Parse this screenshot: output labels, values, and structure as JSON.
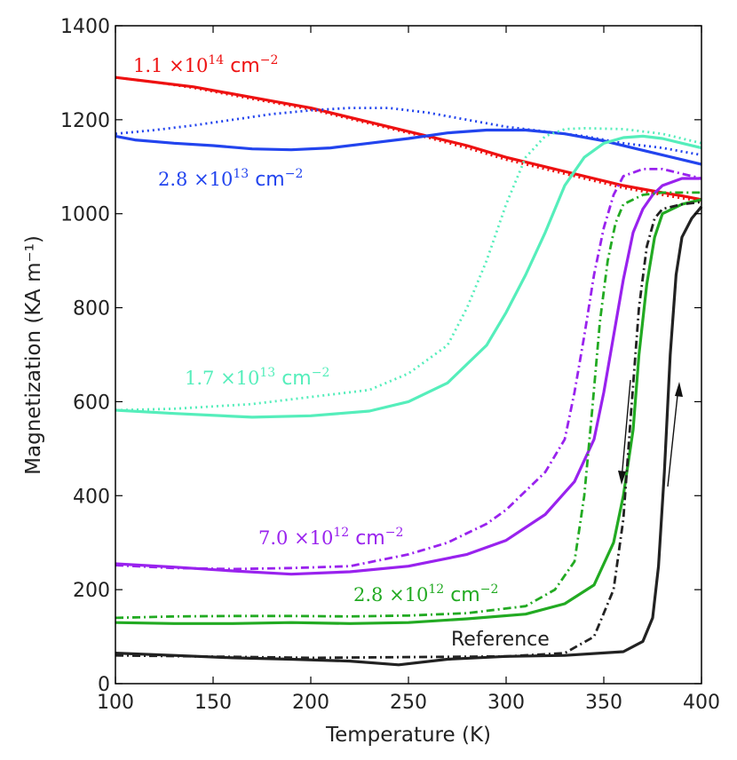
{
  "chart_data": {
    "type": "line",
    "xlabel": "Temperature (K)",
    "ylabel": "Magnetization (KA m⁻¹)",
    "xlim": [
      100,
      400
    ],
    "ylim": [
      0,
      1400
    ],
    "xticks": [
      "100",
      "150",
      "200",
      "250",
      "300",
      "350",
      "400"
    ],
    "yticks": [
      "0",
      "200",
      "400",
      "600",
      "800",
      "1000",
      "1200",
      "1400"
    ],
    "grid": false,
    "legend": "none",
    "series": [
      {
        "color": "#ee1111",
        "style": "solid",
        "x": [
          100,
          120,
          140,
          160,
          180,
          200,
          220,
          240,
          260,
          280,
          300,
          320,
          340,
          360,
          380,
          390,
          400
        ],
        "y": [
          1290,
          1280,
          1270,
          1255,
          1240,
          1225,
          1205,
          1185,
          1165,
          1145,
          1120,
          1100,
          1080,
          1060,
          1045,
          1038,
          1030
        ]
      },
      {
        "color": "#ee1111",
        "style": "dotted",
        "x": [
          100,
          120,
          140,
          160,
          180,
          200,
          220,
          240,
          260,
          280,
          300,
          320,
          340,
          360,
          380,
          390,
          400
        ],
        "y": [
          1290,
          1280,
          1268,
          1252,
          1237,
          1222,
          1202,
          1182,
          1162,
          1140,
          1115,
          1095,
          1075,
          1055,
          1040,
          1033,
          1027
        ]
      },
      {
        "color": "#2244ee",
        "style": "solid",
        "x": [
          100,
          110,
          130,
          150,
          170,
          190,
          210,
          230,
          250,
          270,
          290,
          310,
          330,
          350,
          370,
          390,
          400
        ],
        "y": [
          1165,
          1157,
          1150,
          1145,
          1138,
          1136,
          1140,
          1150,
          1160,
          1172,
          1178,
          1178,
          1170,
          1155,
          1135,
          1115,
          1105
        ]
      },
      {
        "color": "#2244ee",
        "style": "dotted",
        "x": [
          100,
          120,
          140,
          160,
          180,
          200,
          220,
          240,
          260,
          280,
          300,
          320,
          340,
          360,
          380,
          400
        ],
        "y": [
          1170,
          1178,
          1188,
          1200,
          1212,
          1220,
          1225,
          1225,
          1215,
          1200,
          1185,
          1175,
          1165,
          1150,
          1140,
          1125
        ]
      },
      {
        "color": "#55eebb",
        "style": "solid",
        "x": [
          100,
          130,
          170,
          200,
          230,
          250,
          270,
          290,
          300,
          310,
          320,
          330,
          340,
          350,
          360,
          370,
          380,
          390,
          400
        ],
        "y": [
          582,
          575,
          567,
          570,
          580,
          600,
          640,
          720,
          790,
          870,
          960,
          1060,
          1120,
          1150,
          1162,
          1165,
          1160,
          1150,
          1140
        ]
      },
      {
        "color": "#55eebb",
        "style": "dotted",
        "x": [
          100,
          130,
          170,
          200,
          230,
          250,
          270,
          280,
          290,
          300,
          310,
          320,
          330,
          340,
          360,
          380,
          400
        ],
        "y": [
          582,
          585,
          595,
          610,
          625,
          660,
          720,
          800,
          900,
          1020,
          1120,
          1165,
          1180,
          1182,
          1180,
          1170,
          1150
        ]
      },
      {
        "color": "#9922ee",
        "style": "solid",
        "x": [
          100,
          130,
          160,
          190,
          220,
          250,
          280,
          300,
          320,
          335,
          345,
          350,
          355,
          360,
          365,
          370,
          375,
          380,
          390,
          400
        ],
        "y": [
          255,
          248,
          240,
          233,
          238,
          250,
          275,
          305,
          360,
          430,
          520,
          620,
          740,
          860,
          960,
          1010,
          1040,
          1060,
          1075,
          1075
        ]
      },
      {
        "color": "#9922ee",
        "style": "dashdot",
        "x": [
          100,
          130,
          160,
          190,
          220,
          250,
          270,
          290,
          300,
          310,
          320,
          330,
          335,
          340,
          345,
          350,
          355,
          360,
          370,
          380,
          390,
          400
        ],
        "y": [
          252,
          246,
          244,
          246,
          250,
          275,
          300,
          340,
          370,
          410,
          450,
          520,
          620,
          740,
          870,
          970,
          1040,
          1080,
          1095,
          1095,
          1085,
          1075
        ]
      },
      {
        "color": "#22aa22",
        "style": "solid",
        "x": [
          100,
          130,
          160,
          190,
          220,
          250,
          280,
          310,
          330,
          345,
          355,
          360,
          365,
          368,
          372,
          376,
          380,
          390,
          400
        ],
        "y": [
          130,
          128,
          128,
          130,
          128,
          130,
          138,
          148,
          170,
          210,
          300,
          400,
          540,
          700,
          850,
          950,
          1000,
          1020,
          1030
        ]
      },
      {
        "color": "#22aa22",
        "style": "dashdot",
        "x": [
          100,
          130,
          160,
          190,
          220,
          250,
          280,
          310,
          325,
          335,
          340,
          344,
          348,
          352,
          356,
          360,
          370,
          380,
          390,
          400
        ],
        "y": [
          140,
          143,
          144,
          144,
          143,
          145,
          150,
          165,
          200,
          260,
          400,
          580,
          770,
          900,
          980,
          1020,
          1040,
          1045,
          1045,
          1045
        ]
      },
      {
        "color": "#222222",
        "style": "solid",
        "x": [
          100,
          130,
          160,
          190,
          220,
          245,
          270,
          300,
          330,
          360,
          370,
          375,
          378,
          381,
          384,
          387,
          390,
          395,
          400
        ],
        "y": [
          65,
          60,
          55,
          52,
          48,
          40,
          52,
          58,
          60,
          68,
          90,
          140,
          250,
          450,
          700,
          870,
          950,
          990,
          1015
        ]
      },
      {
        "color": "#222222",
        "style": "dashdot",
        "x": [
          100,
          200,
          300,
          330,
          345,
          355,
          360,
          364,
          368,
          372,
          376,
          380,
          390,
          400
        ],
        "y": [
          60,
          55,
          58,
          65,
          100,
          200,
          350,
          580,
          800,
          930,
          990,
          1010,
          1020,
          1025
        ]
      }
    ],
    "annotations": [
      {
        "base": "1.1 ×10",
        "exp": "14",
        "unit": " cm",
        "unit_exp": "−2",
        "color": "#ee1111"
      },
      {
        "base": "2.8 ×10",
        "exp": "13",
        "unit": " cm",
        "unit_exp": "−2",
        "color": "#2244ee"
      },
      {
        "base": "1.7 ×10",
        "exp": "13",
        "unit": " cm",
        "unit_exp": "−2",
        "color": "#55eebb"
      },
      {
        "base": "7.0 ×10",
        "exp": "12",
        "unit": " cm",
        "unit_exp": "−2",
        "color": "#9922ee"
      },
      {
        "base": "2.8 ×10",
        "exp": "12",
        "unit": " cm",
        "unit_exp": "−2",
        "color": "#22aa22"
      },
      {
        "text": "Reference",
        "color": "#222222"
      }
    ]
  }
}
